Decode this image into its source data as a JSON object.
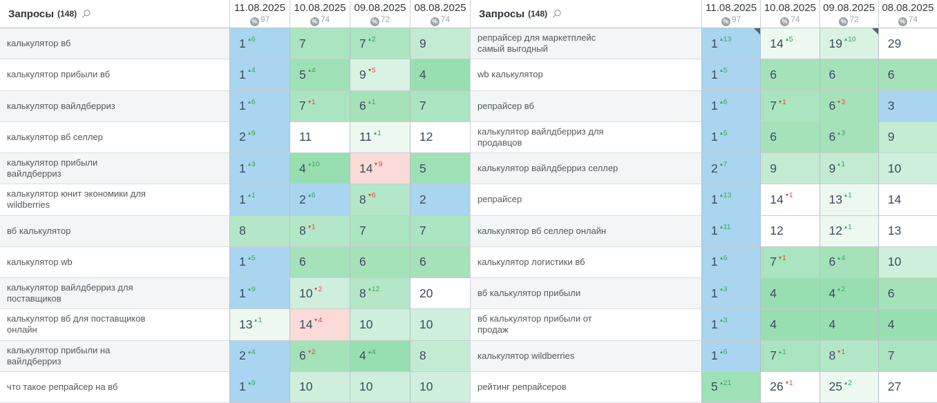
{
  "palette": {
    "blue": "#a9d5f0",
    "g1": "#97dfb1",
    "g2": "#9fe1b7",
    "g3": "#a5e2ba",
    "g4": "#abe4c0",
    "g5": "#b4e7c7",
    "g6": "#c3ebd2",
    "g7": "#cfefdc",
    "pale1": "#d9f3e3",
    "pale2": "#edf8f1",
    "white": "#ffffff",
    "pink": "#fadbd7"
  },
  "status_colors": {
    "change_up": "#3aa45f",
    "change_down": "#e24b3b",
    "top3_blue": "#a9d5f0",
    "drop_pink": "#fadbd7"
  },
  "panels": [
    {
      "header": {
        "title": "Запросы",
        "count": "(148)",
        "columns": [
          {
            "date": "11.08.2025",
            "coverage": "97"
          },
          {
            "date": "10.08.2025",
            "coverage": "74"
          },
          {
            "date": "09.08.2025",
            "coverage": "72"
          },
          {
            "date": "08.08.2025",
            "coverage": "74"
          }
        ]
      },
      "rows": [
        {
          "keyword": "калькулятор вб",
          "cells": [
            {
              "v": "1",
              "c": "6",
              "d": "up",
              "bg": "blue"
            },
            {
              "v": "7",
              "bg": "g4"
            },
            {
              "v": "7",
              "c": "2",
              "d": "up",
              "bg": "g4"
            },
            {
              "v": "9",
              "bg": "g6"
            }
          ]
        },
        {
          "keyword": "калькулятор прибыли вб",
          "cells": [
            {
              "v": "1",
              "c": "4",
              "d": "up",
              "bg": "blue"
            },
            {
              "v": "5",
              "c": "4",
              "d": "up",
              "bg": "g2"
            },
            {
              "v": "9",
              "c": "5",
              "d": "dn",
              "bg": "pale1"
            },
            {
              "v": "4",
              "bg": "g1"
            }
          ]
        },
        {
          "keyword": "калькулятор вайлдберриз",
          "cells": [
            {
              "v": "1",
              "c": "6",
              "d": "up",
              "bg": "blue"
            },
            {
              "v": "7",
              "c": "1",
              "d": "dn",
              "bg": "g4"
            },
            {
              "v": "6",
              "c": "1",
              "d": "up",
              "bg": "g3"
            },
            {
              "v": "7",
              "bg": "g4"
            }
          ]
        },
        {
          "keyword": "калькулятор вб селлер",
          "cells": [
            {
              "v": "2",
              "c": "9",
              "d": "up",
              "bg": "blue"
            },
            {
              "v": "11",
              "bg": "white"
            },
            {
              "v": "11",
              "c": "1",
              "d": "up",
              "bg": "pale2"
            },
            {
              "v": "12",
              "bg": "white"
            }
          ]
        },
        {
          "keyword": "калькулятор прибыли вайлдберриз",
          "cells": [
            {
              "v": "1",
              "c": "3",
              "d": "up",
              "bg": "blue"
            },
            {
              "v": "4",
              "c": "10",
              "d": "up",
              "bg": "g1"
            },
            {
              "v": "14",
              "c": "9",
              "d": "dn",
              "bg": "pink"
            },
            {
              "v": "5",
              "bg": "g2"
            }
          ]
        },
        {
          "keyword": "калькулятор юнит экономики для wildberries",
          "cells": [
            {
              "v": "1",
              "c": "1",
              "d": "up",
              "bg": "blue"
            },
            {
              "v": "2",
              "c": "6",
              "d": "up",
              "bg": "blue"
            },
            {
              "v": "8",
              "c": "6",
              "d": "dn",
              "bg": "g5"
            },
            {
              "v": "2",
              "bg": "blue"
            }
          ]
        },
        {
          "keyword": "вб калькулятор",
          "cells": [
            {
              "v": "8",
              "bg": "g5"
            },
            {
              "v": "8",
              "c": "1",
              "d": "dn",
              "bg": "g5"
            },
            {
              "v": "7",
              "bg": "g4"
            },
            {
              "v": "7",
              "bg": "g4"
            }
          ]
        },
        {
          "keyword": "калькулятор wb",
          "cells": [
            {
              "v": "1",
              "c": "5",
              "d": "up",
              "bg": "blue"
            },
            {
              "v": "6",
              "bg": "g3"
            },
            {
              "v": "6",
              "bg": "g3"
            },
            {
              "v": "6",
              "bg": "g3"
            }
          ]
        },
        {
          "keyword": "калькулятор вайлдберриз для поставщиков",
          "cells": [
            {
              "v": "1",
              "c": "9",
              "d": "up",
              "bg": "blue"
            },
            {
              "v": "10",
              "c": "2",
              "d": "dn",
              "bg": "g7"
            },
            {
              "v": "8",
              "c": "12",
              "d": "up",
              "bg": "g5"
            },
            {
              "v": "20",
              "bg": "white"
            }
          ]
        },
        {
          "keyword": "калькулятор вб для поставщиков онлайн",
          "cells": [
            {
              "v": "13",
              "c": "1",
              "d": "up",
              "bg": "pale2"
            },
            {
              "v": "14",
              "c": "4",
              "d": "dn",
              "bg": "pink"
            },
            {
              "v": "10",
              "bg": "g7"
            },
            {
              "v": "10",
              "bg": "g7"
            }
          ]
        },
        {
          "keyword": "калькулятор прибыли на вайлдберриз",
          "cells": [
            {
              "v": "2",
              "c": "4",
              "d": "up",
              "bg": "blue"
            },
            {
              "v": "6",
              "c": "2",
              "d": "dn",
              "bg": "g3"
            },
            {
              "v": "4",
              "c": "4",
              "d": "up",
              "bg": "g1"
            },
            {
              "v": "8",
              "bg": "g6"
            }
          ]
        },
        {
          "keyword": "что такое репрайсер на вб",
          "cells": [
            {
              "v": "1",
              "c": "9",
              "d": "up",
              "bg": "blue"
            },
            {
              "v": "10",
              "bg": "g7"
            },
            {
              "v": "10",
              "bg": "g7"
            },
            {
              "v": "10",
              "bg": "g7"
            }
          ]
        }
      ]
    },
    {
      "header": {
        "title": "Запросы",
        "count": "(148)",
        "columns": [
          {
            "date": "11.08.2025",
            "coverage": "97"
          },
          {
            "date": "10.08.2025",
            "coverage": "74"
          },
          {
            "date": "09.08.2025",
            "coverage": "72"
          },
          {
            "date": "08.08.2025",
            "coverage": "74"
          }
        ]
      },
      "rows": [
        {
          "keyword": "репрайсер для маркетплейс самый выгодный",
          "cells": [
            {
              "v": "1",
              "c": "13",
              "d": "up",
              "bg": "blue",
              "m": true
            },
            {
              "v": "14",
              "c": "5",
              "d": "up",
              "bg": "pale2"
            },
            {
              "v": "19",
              "c": "10",
              "d": "up",
              "bg": "pale1",
              "m": true
            },
            {
              "v": "29",
              "bg": "white"
            }
          ]
        },
        {
          "keyword": "wb калькулятор",
          "cells": [
            {
              "v": "1",
              "c": "5",
              "d": "up",
              "bg": "blue"
            },
            {
              "v": "6",
              "bg": "g3"
            },
            {
              "v": "6",
              "bg": "g3"
            },
            {
              "v": "6",
              "bg": "g3"
            }
          ]
        },
        {
          "keyword": "репрайсер вб",
          "cells": [
            {
              "v": "1",
              "c": "6",
              "d": "up",
              "bg": "blue"
            },
            {
              "v": "7",
              "c": "1",
              "d": "dn",
              "bg": "g4"
            },
            {
              "v": "6",
              "c": "3",
              "d": "dn",
              "bg": "g3"
            },
            {
              "v": "3",
              "bg": "blue"
            }
          ]
        },
        {
          "keyword": "калькулятор вайлдберриз для продавцов",
          "cells": [
            {
              "v": "1",
              "c": "5",
              "d": "up",
              "bg": "blue"
            },
            {
              "v": "6",
              "bg": "g3"
            },
            {
              "v": "6",
              "c": "3",
              "d": "up",
              "bg": "g3"
            },
            {
              "v": "9",
              "bg": "g6"
            }
          ]
        },
        {
          "keyword": "калькулятор вайлдберриз селлер",
          "cells": [
            {
              "v": "2",
              "c": "7",
              "d": "up",
              "bg": "blue"
            },
            {
              "v": "9",
              "bg": "g6"
            },
            {
              "v": "9",
              "c": "1",
              "d": "up",
              "bg": "g6"
            },
            {
              "v": "10",
              "bg": "g7"
            }
          ]
        },
        {
          "keyword": "репрайсер",
          "cells": [
            {
              "v": "1",
              "c": "13",
              "d": "up",
              "bg": "blue"
            },
            {
              "v": "14",
              "c": "1",
              "d": "dn",
              "bg": "white"
            },
            {
              "v": "13",
              "c": "1",
              "d": "up",
              "bg": "pale2"
            },
            {
              "v": "14",
              "bg": "white"
            }
          ]
        },
        {
          "keyword": "калькулятор вб селлер онлайн",
          "cells": [
            {
              "v": "1",
              "c": "11",
              "d": "up",
              "bg": "blue"
            },
            {
              "v": "12",
              "bg": "white"
            },
            {
              "v": "12",
              "c": "1",
              "d": "up",
              "bg": "pale2"
            },
            {
              "v": "13",
              "bg": "white"
            }
          ]
        },
        {
          "keyword": "калькулятор логистики вб",
          "cells": [
            {
              "v": "1",
              "c": "6",
              "d": "up",
              "bg": "blue"
            },
            {
              "v": "7",
              "c": "1",
              "d": "dn",
              "bg": "g4"
            },
            {
              "v": "6",
              "c": "4",
              "d": "up",
              "bg": "g3"
            },
            {
              "v": "10",
              "bg": "g7"
            }
          ]
        },
        {
          "keyword": "вб калькулятор прибыли",
          "cells": [
            {
              "v": "1",
              "c": "3",
              "d": "up",
              "bg": "blue"
            },
            {
              "v": "4",
              "bg": "g1"
            },
            {
              "v": "4",
              "c": "2",
              "d": "up",
              "bg": "g1"
            },
            {
              "v": "6",
              "bg": "g3"
            }
          ]
        },
        {
          "keyword": "вб калькулятор прибыли от продаж",
          "cells": [
            {
              "v": "1",
              "c": "3",
              "d": "up",
              "bg": "blue"
            },
            {
              "v": "4",
              "bg": "g1"
            },
            {
              "v": "4",
              "bg": "g1"
            },
            {
              "v": "4",
              "bg": "g1"
            }
          ]
        },
        {
          "keyword": "калькулятор wildberries",
          "cells": [
            {
              "v": "1",
              "c": "6",
              "d": "up",
              "bg": "blue"
            },
            {
              "v": "7",
              "c": "1",
              "d": "up",
              "bg": "g4"
            },
            {
              "v": "8",
              "c": "1",
              "d": "dn",
              "bg": "g5"
            },
            {
              "v": "7",
              "bg": "g4"
            }
          ]
        },
        {
          "keyword": "рейтинг репрайсеров",
          "cells": [
            {
              "v": "5",
              "c": "21",
              "d": "up",
              "bg": "g2"
            },
            {
              "v": "26",
              "c": "1",
              "d": "dn",
              "bg": "white"
            },
            {
              "v": "25",
              "c": "2",
              "d": "up",
              "bg": "pale2"
            },
            {
              "v": "27",
              "bg": "white"
            }
          ]
        }
      ]
    }
  ]
}
